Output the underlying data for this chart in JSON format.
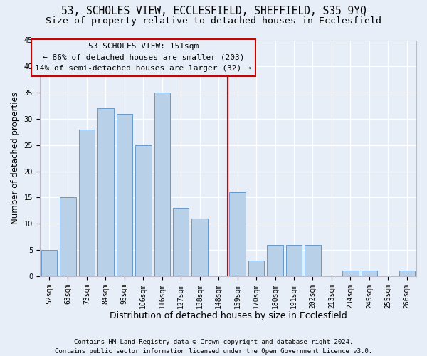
{
  "title": "53, SCHOLES VIEW, ECCLESFIELD, SHEFFIELD, S35 9YQ",
  "subtitle": "Size of property relative to detached houses in Ecclesfield",
  "xlabel": "Distribution of detached houses by size in Ecclesfield",
  "ylabel": "Number of detached properties",
  "footer1": "Contains HM Land Registry data © Crown copyright and database right 2024.",
  "footer2": "Contains public sector information licensed under the Open Government Licence v3.0.",
  "bin_labels": [
    "52sqm",
    "63sqm",
    "73sqm",
    "84sqm",
    "95sqm",
    "106sqm",
    "116sqm",
    "127sqm",
    "138sqm",
    "148sqm",
    "159sqm",
    "170sqm",
    "180sqm",
    "191sqm",
    "202sqm",
    "213sqm",
    "234sqm",
    "245sqm",
    "255sqm",
    "266sqm"
  ],
  "bar_values": [
    5,
    15,
    28,
    32,
    31,
    25,
    35,
    13,
    11,
    0,
    16,
    3,
    6,
    6,
    6,
    0,
    1,
    1,
    0,
    1
  ],
  "bar_color": "#b8d0e8",
  "bar_edge_color": "#6699cc",
  "annotation_title": "53 SCHOLES VIEW: 151sqm",
  "annotation_line1": "← 86% of detached houses are smaller (203)",
  "annotation_line2": "14% of semi-detached houses are larger (32) →",
  "vline_color": "#cc0000",
  "vline_x": 9.5,
  "ylim": [
    0,
    45
  ],
  "yticks": [
    0,
    5,
    10,
    15,
    20,
    25,
    30,
    35,
    40,
    45
  ],
  "background_color": "#e8eef8",
  "grid_color": "#ffffff",
  "title_fontsize": 10.5,
  "subtitle_fontsize": 9.5,
  "ylabel_fontsize": 8.5,
  "xlabel_fontsize": 9,
  "tick_fontsize": 7,
  "annotation_fontsize": 8,
  "footer_fontsize": 6.5
}
